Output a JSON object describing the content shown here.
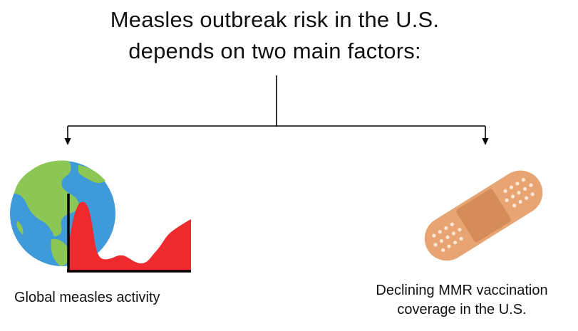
{
  "title": {
    "line1": "Measles outbreak risk in the U.S.",
    "line2": "depends on two main factors:"
  },
  "factors": [
    {
      "label": "Global measles activity",
      "icon": "globe-with-activity-chart-icon"
    },
    {
      "label_line1": "Declining MMR vaccination",
      "label_line2": "coverage in the U.S.",
      "icon": "bandage-icon"
    }
  ],
  "colors": {
    "ocean": "#3e9ad8",
    "land": "#8cc756",
    "chart_fill": "#ee2a2f",
    "bandage": "#e8a473",
    "bandage_pad": "#d68c58",
    "connector": "#000000"
  }
}
